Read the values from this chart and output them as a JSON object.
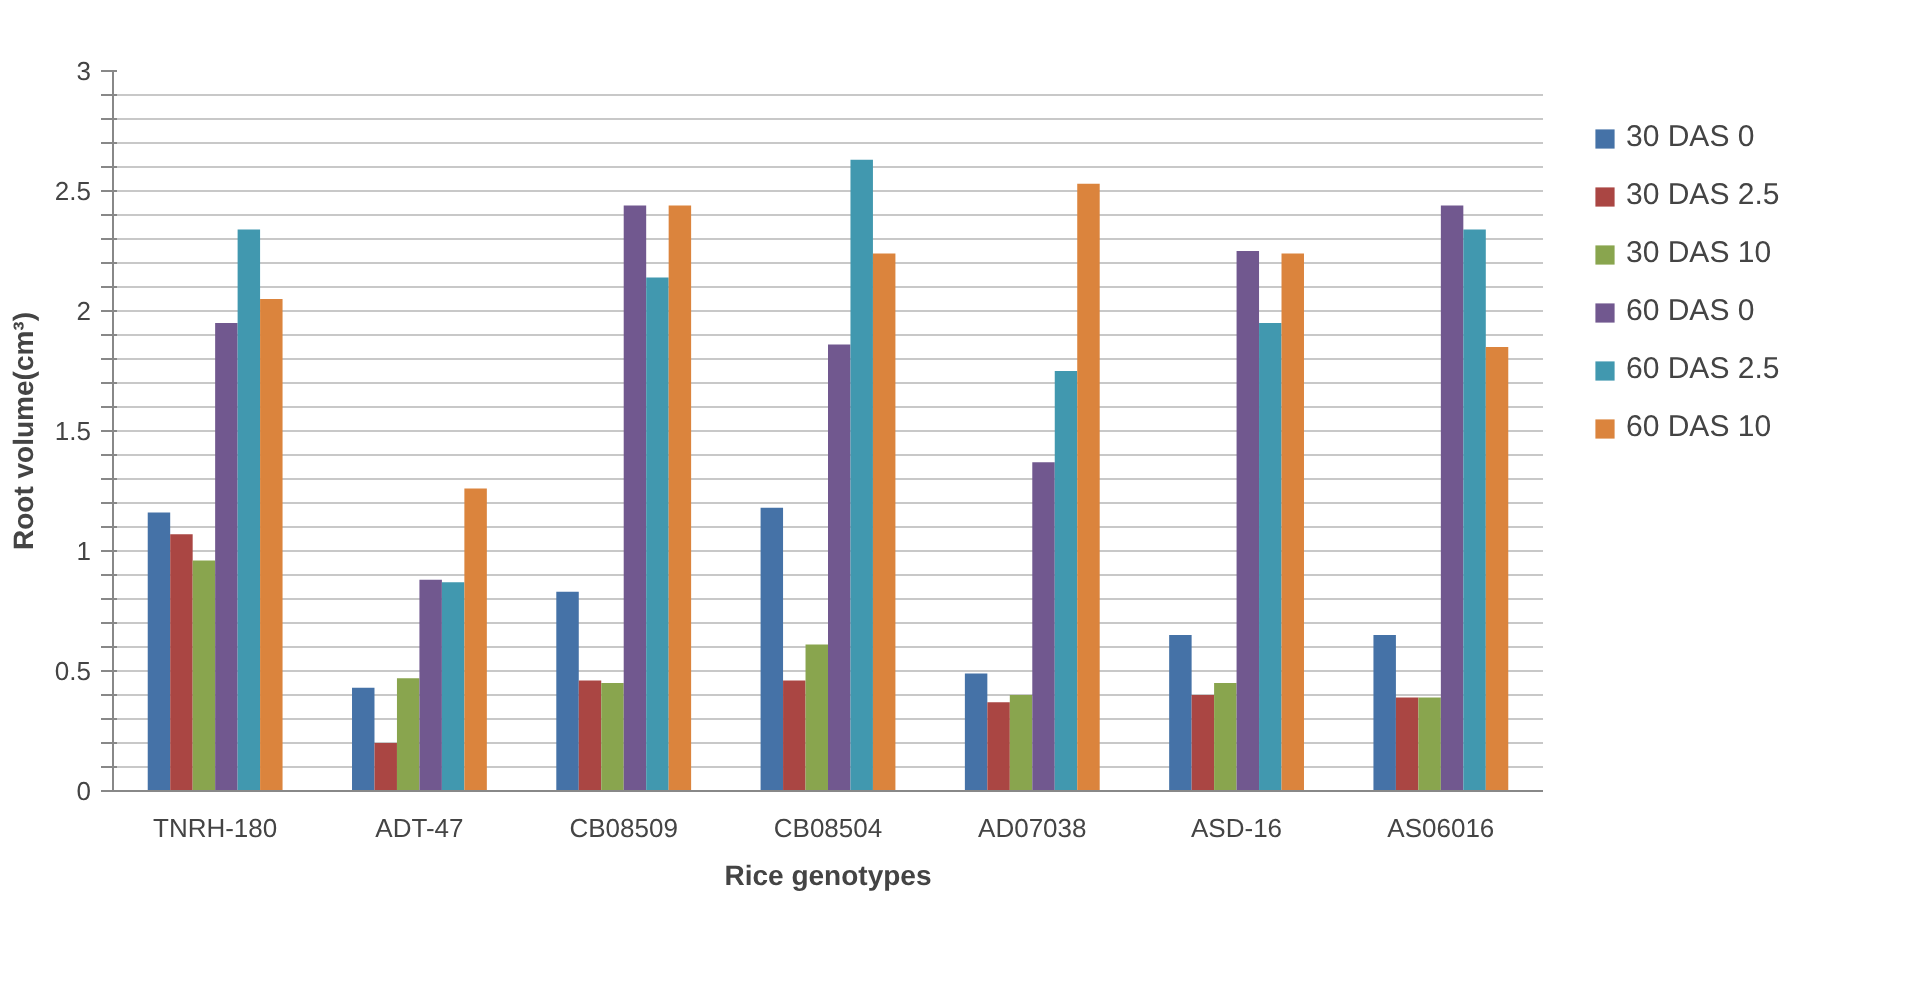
{
  "chart_data": {
    "type": "bar",
    "xlabel": "Rice genotypes",
    "ylabel": "Root volume(cm³)",
    "categories": [
      "TNRH-180",
      "ADT-47",
      "CB08509",
      "CB08504",
      "AD07038",
      "ASD-16",
      "AS06016"
    ],
    "series": [
      {
        "name": "30 DAS 0",
        "color": "#4572a7",
        "values": [
          1.16,
          0.43,
          0.83,
          1.18,
          0.49,
          0.65,
          0.65
        ]
      },
      {
        "name": "30 DAS 2.5",
        "color": "#aa4643",
        "values": [
          1.07,
          0.2,
          0.46,
          0.46,
          0.37,
          0.4,
          0.39
        ]
      },
      {
        "name": "30 DAS 10",
        "color": "#89a54e",
        "values": [
          0.96,
          0.47,
          0.45,
          0.61,
          0.4,
          0.45,
          0.39
        ]
      },
      {
        "name": "60 DAS 0",
        "color": "#71588f",
        "values": [
          1.95,
          0.88,
          2.44,
          1.86,
          1.37,
          2.25,
          2.44
        ]
      },
      {
        "name": "60 DAS 2.5",
        "color": "#4198af",
        "values": [
          2.34,
          0.87,
          2.14,
          2.63,
          1.75,
          1.95,
          2.34
        ]
      },
      {
        "name": "60 DAS 10",
        "color": "#db843d",
        "values": [
          2.05,
          1.26,
          2.44,
          2.24,
          2.53,
          2.24,
          1.85
        ]
      }
    ],
    "ylim": [
      0,
      3
    ],
    "yticks": [
      0,
      {
        "value": 0.1,
        "label": null
      },
      {
        "value": 0.2,
        "label": null
      },
      {
        "value": 0.3,
        "label": null
      },
      {
        "value": 0.4,
        "label": null
      },
      0.5,
      {
        "value": 0.6,
        "label": null
      },
      {
        "value": 0.7,
        "label": null
      },
      {
        "value": 0.8,
        "label": null
      },
      {
        "value": 0.9,
        "label": null
      },
      1,
      {
        "value": 1.1,
        "label": null
      },
      {
        "value": 1.2,
        "label": null
      },
      {
        "value": 1.3,
        "label": null
      },
      {
        "value": 1.4,
        "label": null
      },
      1.5,
      {
        "value": 1.6,
        "label": null
      },
      {
        "value": 1.7,
        "label": null
      },
      {
        "value": 1.8,
        "label": null
      },
      {
        "value": 1.9,
        "label": null
      },
      2,
      {
        "value": 2.1,
        "label": null
      },
      {
        "value": 2.2,
        "label": null
      },
      {
        "value": 2.3,
        "label": null
      },
      {
        "value": 2.4,
        "label": null
      },
      2.5,
      {
        "value": 2.6,
        "label": null
      },
      {
        "value": 2.7,
        "label": null
      },
      {
        "value": 2.8,
        "label": null
      },
      {
        "value": 2.9,
        "label": null
      },
      3
    ],
    "grid": "y",
    "legend": "right"
  }
}
